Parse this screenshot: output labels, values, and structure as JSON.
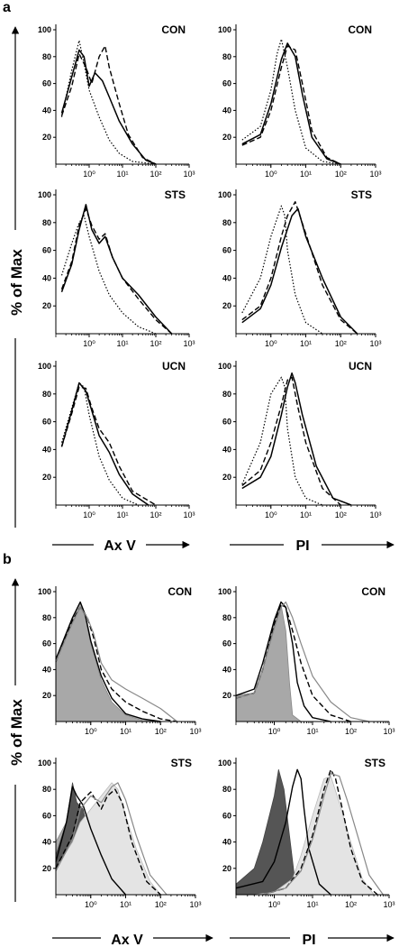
{
  "panels": [
    {
      "label": "a",
      "ylabel": "% of Max",
      "xlabels": [
        "Ax V",
        "PI"
      ]
    },
    {
      "label": "b",
      "ylabel": "% of Max",
      "xlabels": [
        "Ax V",
        "PI"
      ]
    }
  ],
  "axis": {
    "yticks": [
      "20",
      "40",
      "60",
      "80",
      "100"
    ],
    "xticks": [
      "10⁰",
      "10¹",
      "10²",
      "10³"
    ],
    "xlim": [
      0.1,
      1000
    ],
    "ylim": [
      0,
      100
    ],
    "xscale": "log"
  },
  "chart_data": [
    {
      "panel": "a",
      "type": "line",
      "title": "CON",
      "marker": "Ax V",
      "series": [
        {
          "style": "dotted",
          "x": [
            0.15,
            0.3,
            0.5,
            0.7,
            1,
            2,
            4,
            8,
            20,
            100
          ],
          "values": [
            35,
            70,
            92,
            75,
            55,
            35,
            18,
            8,
            2,
            0
          ]
        },
        {
          "style": "solid",
          "x": [
            0.15,
            0.3,
            0.5,
            0.7,
            1,
            1.5,
            2.5,
            4,
            8,
            20,
            50,
            100
          ],
          "values": [
            38,
            65,
            85,
            80,
            58,
            68,
            62,
            50,
            32,
            15,
            3,
            0
          ]
        },
        {
          "style": "dashed",
          "x": [
            0.15,
            0.3,
            0.5,
            0.8,
            1.2,
            2,
            3,
            4,
            8,
            15,
            40,
            100
          ],
          "values": [
            36,
            58,
            82,
            72,
            60,
            80,
            88,
            72,
            45,
            22,
            5,
            0
          ]
        }
      ]
    },
    {
      "panel": "a",
      "type": "line",
      "title": "CON",
      "marker": "PI",
      "series": [
        {
          "style": "dotted",
          "x": [
            0.15,
            0.5,
            1,
            1.5,
            2,
            3,
            5,
            10,
            30,
            100
          ],
          "values": [
            18,
            28,
            55,
            82,
            93,
            72,
            40,
            12,
            2,
            0
          ]
        },
        {
          "style": "solid",
          "x": [
            0.15,
            0.5,
            1,
            2,
            3,
            5,
            8,
            15,
            40,
            100
          ],
          "values": [
            15,
            22,
            45,
            78,
            90,
            80,
            52,
            20,
            4,
            0
          ]
        },
        {
          "style": "dashed",
          "x": [
            0.15,
            0.5,
            1,
            2,
            3,
            5,
            8,
            15,
            40,
            100
          ],
          "values": [
            14,
            20,
            40,
            72,
            88,
            85,
            60,
            25,
            5,
            0
          ]
        }
      ]
    },
    {
      "panel": "a",
      "type": "line",
      "title": "STS",
      "marker": "Ax V",
      "series": [
        {
          "style": "dotted",
          "x": [
            0.15,
            0.3,
            0.5,
            0.7,
            1,
            2,
            4,
            10,
            30,
            100
          ],
          "values": [
            42,
            65,
            80,
            85,
            70,
            45,
            28,
            15,
            5,
            0
          ]
        },
        {
          "style": "solid",
          "x": [
            0.15,
            0.3,
            0.5,
            0.8,
            1.2,
            2,
            3,
            5,
            10,
            30,
            100,
            300
          ],
          "values": [
            30,
            50,
            75,
            93,
            75,
            65,
            70,
            55,
            40,
            28,
            12,
            0
          ]
        },
        {
          "style": "dashed",
          "x": [
            0.15,
            0.3,
            0.5,
            0.8,
            1.2,
            2,
            3,
            5,
            10,
            30,
            100,
            300
          ],
          "values": [
            32,
            52,
            78,
            90,
            78,
            68,
            72,
            55,
            40,
            25,
            10,
            0
          ]
        }
      ]
    },
    {
      "panel": "a",
      "type": "line",
      "title": "STS",
      "marker": "PI",
      "series": [
        {
          "style": "dotted",
          "x": [
            0.15,
            0.5,
            1,
            2,
            2.5,
            3,
            5,
            10,
            30
          ],
          "values": [
            15,
            40,
            70,
            92,
            85,
            60,
            28,
            8,
            0
          ]
        },
        {
          "style": "solid",
          "x": [
            0.15,
            0.5,
            1,
            2,
            4,
            6,
            10,
            30,
            100,
            300
          ],
          "values": [
            8,
            18,
            35,
            62,
            85,
            90,
            70,
            40,
            12,
            0
          ]
        },
        {
          "style": "dashed",
          "x": [
            0.15,
            0.5,
            1,
            2,
            3,
            5,
            10,
            30,
            100,
            300
          ],
          "values": [
            10,
            20,
            40,
            70,
            85,
            95,
            72,
            35,
            10,
            0
          ]
        }
      ]
    },
    {
      "panel": "a",
      "type": "line",
      "title": "UCN",
      "marker": "Ax V",
      "series": [
        {
          "style": "dotted",
          "x": [
            0.15,
            0.3,
            0.5,
            0.7,
            1,
            2,
            4,
            10,
            30
          ],
          "values": [
            45,
            70,
            88,
            85,
            65,
            35,
            18,
            5,
            0
          ]
        },
        {
          "style": "solid",
          "x": [
            0.15,
            0.3,
            0.5,
            0.8,
            1.2,
            2,
            4,
            8,
            20,
            60
          ],
          "values": [
            42,
            68,
            88,
            82,
            68,
            50,
            38,
            22,
            8,
            0
          ]
        },
        {
          "style": "dashed",
          "x": [
            0.15,
            0.3,
            0.5,
            0.8,
            1.2,
            2,
            4,
            8,
            20,
            100
          ],
          "values": [
            42,
            66,
            85,
            84,
            70,
            55,
            45,
            28,
            10,
            0
          ]
        }
      ]
    },
    {
      "panel": "a",
      "type": "line",
      "title": "UCN",
      "marker": "PI",
      "series": [
        {
          "style": "dotted",
          "x": [
            0.15,
            0.5,
            1,
            2,
            2.5,
            3,
            5,
            10,
            30
          ],
          "values": [
            15,
            45,
            80,
            92,
            85,
            55,
            20,
            5,
            0
          ]
        },
        {
          "style": "solid",
          "x": [
            0.15,
            0.5,
            1,
            2,
            3,
            4,
            5,
            8,
            20,
            60,
            200
          ],
          "values": [
            12,
            20,
            35,
            65,
            85,
            95,
            88,
            65,
            28,
            5,
            0
          ]
        },
        {
          "style": "dashed",
          "x": [
            0.15,
            0.5,
            1,
            2,
            3,
            4,
            6,
            10,
            30,
            100
          ],
          "values": [
            14,
            25,
            45,
            72,
            90,
            92,
            70,
            45,
            12,
            0
          ]
        }
      ]
    },
    {
      "panel": "b",
      "type": "area",
      "title": "CON",
      "marker": "Ax V",
      "series": [
        {
          "style": "filled",
          "x": [
            0.1,
            0.3,
            0.5,
            0.7,
            1,
            2,
            4,
            10,
            30,
            100
          ],
          "values": [
            45,
            80,
            92,
            80,
            60,
            32,
            15,
            5,
            1,
            0
          ]
        },
        {
          "style": "black",
          "x": [
            0.1,
            0.3,
            0.5,
            0.7,
            1,
            2,
            4,
            10,
            30,
            100
          ],
          "values": [
            48,
            80,
            92,
            82,
            62,
            35,
            18,
            6,
            2,
            0
          ]
        },
        {
          "style": "dashed",
          "x": [
            0.1,
            0.3,
            0.5,
            0.8,
            1.2,
            2,
            4,
            10,
            30,
            100,
            300
          ],
          "values": [
            46,
            78,
            88,
            80,
            65,
            40,
            25,
            15,
            8,
            2,
            0
          ]
        },
        {
          "style": "gray",
          "x": [
            0.1,
            0.3,
            0.5,
            0.8,
            1.2,
            2,
            4,
            10,
            30,
            100,
            300
          ],
          "values": [
            46,
            76,
            88,
            80,
            68,
            45,
            32,
            25,
            18,
            10,
            0
          ]
        }
      ]
    },
    {
      "panel": "b",
      "type": "area",
      "title": "CON",
      "marker": "PI",
      "series": [
        {
          "style": "filled",
          "x": [
            0.1,
            0.3,
            0.5,
            1,
            1.5,
            2,
            2.5,
            3,
            5
          ],
          "values": [
            20,
            22,
            40,
            75,
            90,
            70,
            30,
            5,
            0
          ]
        },
        {
          "style": "black",
          "x": [
            0.1,
            0.3,
            0.5,
            1,
            1.5,
            2,
            3,
            4,
            6,
            10,
            30
          ],
          "values": [
            20,
            25,
            45,
            78,
            92,
            88,
            60,
            30,
            12,
            3,
            0
          ]
        },
        {
          "style": "dashed",
          "x": [
            0.1,
            0.3,
            0.5,
            1,
            1.5,
            2,
            3,
            5,
            10,
            30,
            100
          ],
          "values": [
            18,
            22,
            40,
            75,
            90,
            88,
            70,
            45,
            20,
            5,
            0
          ]
        },
        {
          "style": "gray",
          "x": [
            0.1,
            0.3,
            0.5,
            1,
            1.5,
            2,
            3,
            5,
            10,
            30,
            100,
            300
          ],
          "values": [
            18,
            22,
            40,
            72,
            88,
            92,
            80,
            60,
            35,
            15,
            3,
            0
          ]
        }
      ]
    },
    {
      "panel": "b",
      "type": "area",
      "title": "STS",
      "marker": "Ax V",
      "series": [
        {
          "style": "filled",
          "x": [
            0.1,
            0.2,
            0.3,
            0.5,
            0.8,
            1.5,
            3,
            6,
            15,
            40
          ],
          "values": [
            40,
            55,
            52,
            45,
            32,
            25,
            18,
            12,
            5,
            0
          ]
        },
        {
          "style": "darkfill",
          "x": [
            0.1,
            0.2,
            0.3,
            0.4,
            0.6,
            1,
            2,
            4
          ],
          "values": [
            30,
            55,
            85,
            70,
            65,
            40,
            15,
            0
          ]
        },
        {
          "style": "lightfill",
          "x": [
            0.1,
            0.3,
            0.5,
            1,
            2,
            4,
            6,
            10,
            20,
            50,
            100
          ],
          "values": [
            20,
            40,
            55,
            65,
            75,
            85,
            80,
            60,
            35,
            10,
            0
          ]
        },
        {
          "style": "black",
          "x": [
            0.1,
            0.2,
            0.3,
            0.4,
            0.6,
            1,
            2,
            4,
            10
          ],
          "values": [
            25,
            55,
            82,
            75,
            68,
            50,
            30,
            12,
            0
          ]
        },
        {
          "style": "dashed",
          "x": [
            0.1,
            0.3,
            0.5,
            1,
            2,
            3,
            5,
            8,
            15,
            40,
            100
          ],
          "values": [
            20,
            45,
            70,
            78,
            65,
            75,
            80,
            70,
            40,
            10,
            0
          ]
        },
        {
          "style": "gray",
          "x": [
            0.1,
            0.3,
            0.5,
            1,
            2,
            4,
            6,
            10,
            20,
            50,
            150
          ],
          "values": [
            18,
            42,
            65,
            75,
            70,
            82,
            85,
            72,
            45,
            15,
            0
          ]
        }
      ]
    },
    {
      "panel": "b",
      "type": "area",
      "title": "STS",
      "marker": "PI",
      "series": [
        {
          "style": "darkfill",
          "x": [
            0.1,
            0.3,
            0.5,
            1,
            1.3,
            1.8,
            2.5,
            3.5,
            5
          ],
          "values": [
            8,
            20,
            40,
            75,
            95,
            80,
            45,
            10,
            0
          ]
        },
        {
          "style": "black",
          "x": [
            0.1,
            0.5,
            1,
            2,
            3,
            4,
            5,
            6,
            8,
            15,
            30
          ],
          "values": [
            5,
            10,
            25,
            55,
            82,
            95,
            88,
            65,
            35,
            8,
            0
          ]
        },
        {
          "style": "lightfill",
          "x": [
            0.3,
            1,
            3,
            5,
            10,
            20,
            30,
            50,
            100,
            200,
            400
          ],
          "values": [
            0,
            2,
            12,
            30,
            60,
            88,
            90,
            70,
            40,
            12,
            0
          ]
        },
        {
          "style": "dashed",
          "x": [
            0.5,
            2,
            5,
            10,
            20,
            30,
            40,
            60,
            100,
            200,
            500
          ],
          "values": [
            0,
            5,
            20,
            45,
            80,
            95,
            88,
            65,
            35,
            10,
            0
          ]
        },
        {
          "style": "gray",
          "x": [
            0.5,
            2,
            5,
            10,
            20,
            30,
            50,
            80,
            150,
            300,
            700
          ],
          "values": [
            0,
            5,
            18,
            42,
            75,
            92,
            90,
            72,
            45,
            15,
            0
          ]
        }
      ]
    }
  ]
}
